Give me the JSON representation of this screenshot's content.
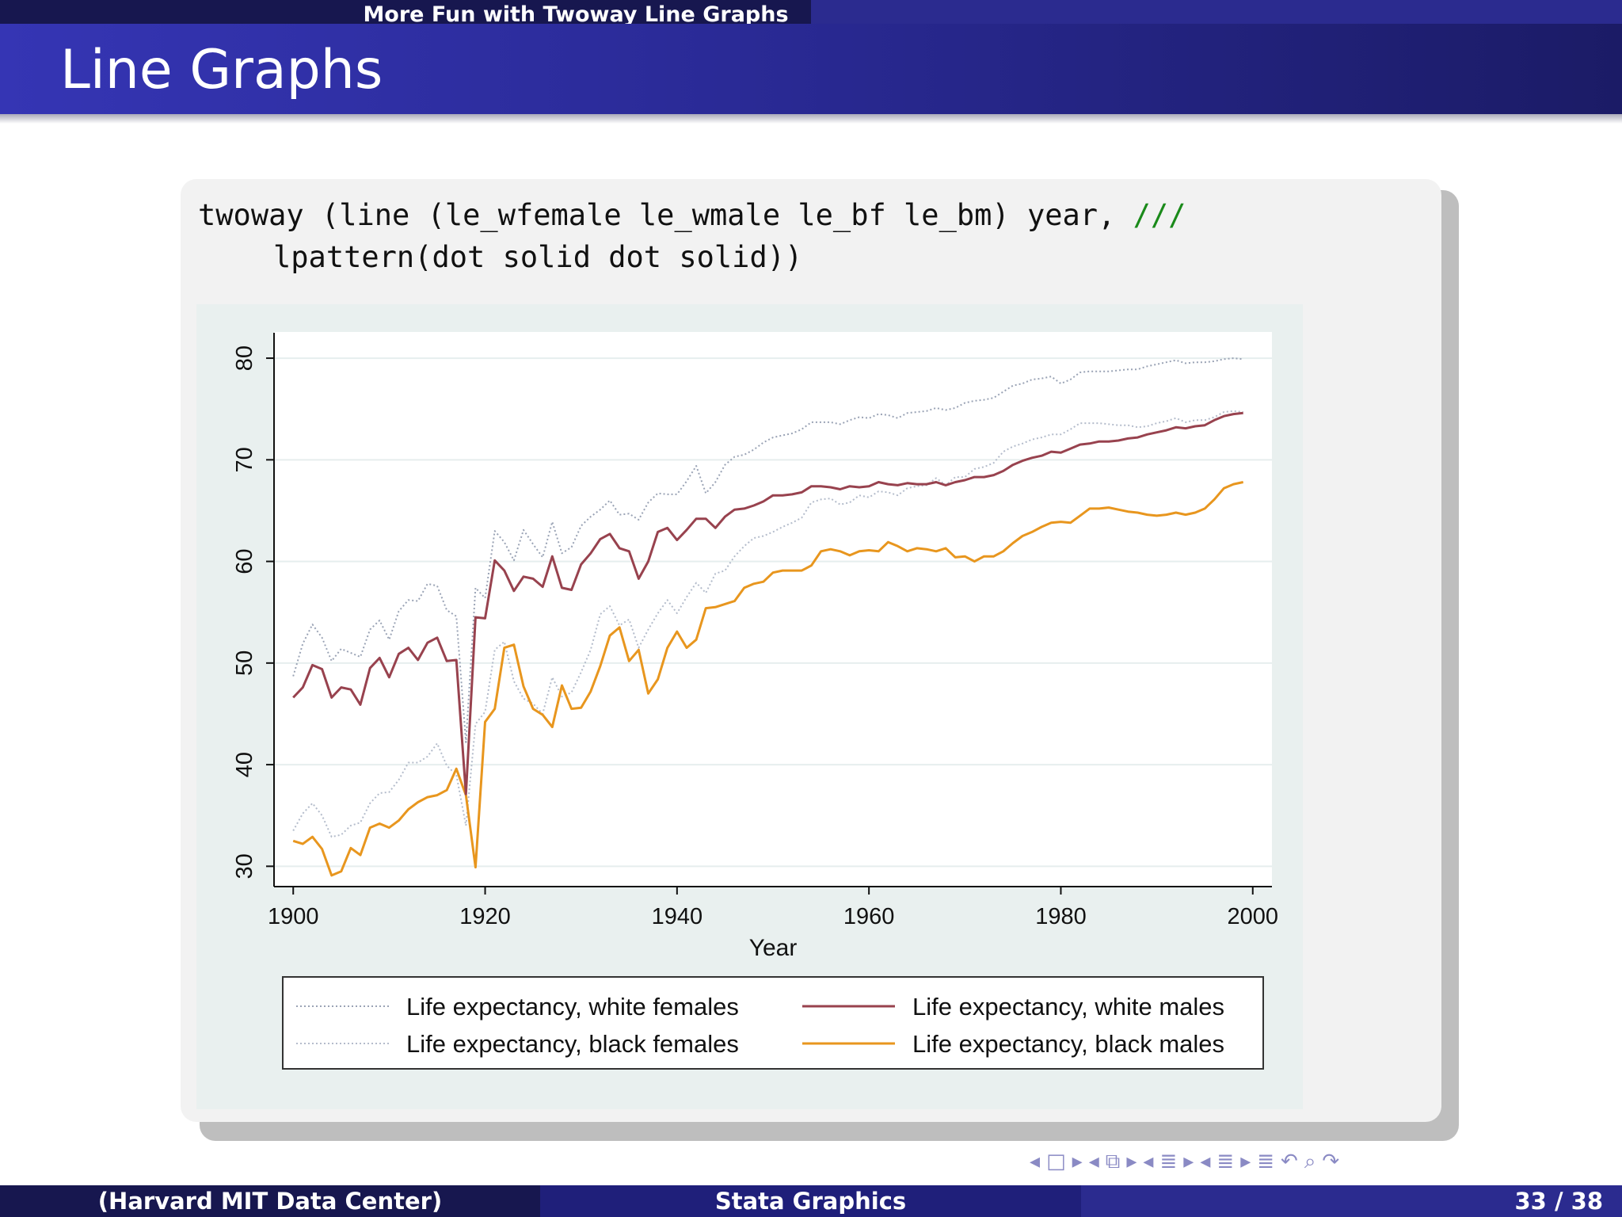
{
  "header": {
    "section_title": "More Fun with Twoway Line Graphs",
    "frame_title": "Line Graphs"
  },
  "code": {
    "line1": "twoway (line (le_wfemale le_wmale le_bf le_bm) year, ",
    "line1_comment": "///",
    "line2": "lpattern(dot solid dot solid))"
  },
  "chart_data": {
    "type": "line",
    "xlabel": "Year",
    "ylabel": "",
    "xlim": [
      1898,
      2002
    ],
    "ylim": [
      28,
      82.5
    ],
    "xticks": [
      1900,
      1920,
      1940,
      1960,
      1980,
      2000
    ],
    "yticks": [
      30,
      40,
      50,
      60,
      70,
      80
    ],
    "grid": true,
    "legend_position": "bottom",
    "x": [
      1900,
      1901,
      1902,
      1903,
      1904,
      1905,
      1906,
      1907,
      1908,
      1909,
      1910,
      1911,
      1912,
      1913,
      1914,
      1915,
      1916,
      1917,
      1918,
      1919,
      1920,
      1921,
      1922,
      1923,
      1924,
      1925,
      1926,
      1927,
      1928,
      1929,
      1930,
      1931,
      1932,
      1933,
      1934,
      1935,
      1936,
      1937,
      1938,
      1939,
      1940,
      1941,
      1942,
      1943,
      1944,
      1945,
      1946,
      1947,
      1948,
      1949,
      1950,
      1951,
      1952,
      1953,
      1954,
      1955,
      1956,
      1957,
      1958,
      1959,
      1960,
      1961,
      1962,
      1963,
      1964,
      1965,
      1966,
      1967,
      1968,
      1969,
      1970,
      1971,
      1972,
      1973,
      1974,
      1975,
      1976,
      1977,
      1978,
      1979,
      1980,
      1981,
      1982,
      1983,
      1984,
      1985,
      1986,
      1987,
      1988,
      1989,
      1990,
      1991,
      1992,
      1993,
      1994,
      1995,
      1996,
      1997,
      1998,
      1999
    ],
    "series": [
      {
        "name": "Life expectancy, white females",
        "color": "#9aa3b5",
        "pattern": "dot",
        "values": [
          48.7,
          51.9,
          53.8,
          52.5,
          50.2,
          51.4,
          51.0,
          50.6,
          53.3,
          54.2,
          52.3,
          55.1,
          56.2,
          56.1,
          57.8,
          57.6,
          55.2,
          54.6,
          42.2,
          57.4,
          56.4,
          63.0,
          61.9,
          60.1,
          63.1,
          61.7,
          60.4,
          63.9,
          60.8,
          61.4,
          63.5,
          64.4,
          65.1,
          66.0,
          64.6,
          64.7,
          64.1,
          65.8,
          66.7,
          66.6,
          66.6,
          67.9,
          69.4,
          66.7,
          67.8,
          69.5,
          70.3,
          70.5,
          71.0,
          71.7,
          72.2,
          72.4,
          72.6,
          73.0,
          73.7,
          73.7,
          73.7,
          73.5,
          73.9,
          74.2,
          74.1,
          74.5,
          74.4,
          74.1,
          74.6,
          74.7,
          74.8,
          75.1,
          74.9,
          75.1,
          75.6,
          75.8,
          75.9,
          76.1,
          76.7,
          77.3,
          77.5,
          77.9,
          78.0,
          78.2,
          77.5,
          77.9,
          78.6,
          78.7,
          78.7,
          78.7,
          78.8,
          78.9,
          78.9,
          79.2,
          79.4,
          79.6,
          79.8,
          79.5,
          79.6,
          79.6,
          79.7,
          79.9,
          80.0,
          79.9
        ]
      },
      {
        "name": "Life expectancy, white males",
        "color": "#98424e",
        "pattern": "solid",
        "values": [
          46.6,
          47.6,
          49.8,
          49.4,
          46.6,
          47.6,
          47.4,
          45.9,
          49.5,
          50.5,
          48.6,
          50.9,
          51.5,
          50.3,
          52.0,
          52.5,
          50.2,
          50.3,
          37.1,
          54.5,
          54.4,
          60.1,
          59.1,
          57.1,
          58.5,
          58.3,
          57.5,
          60.5,
          57.4,
          57.2,
          59.7,
          60.8,
          62.2,
          62.7,
          61.3,
          61.0,
          58.3,
          60.0,
          62.9,
          63.3,
          62.1,
          63.1,
          64.2,
          64.2,
          63.3,
          64.4,
          65.1,
          65.2,
          65.5,
          65.9,
          66.5,
          66.5,
          66.6,
          66.8,
          67.4,
          67.4,
          67.3,
          67.1,
          67.4,
          67.3,
          67.4,
          67.8,
          67.6,
          67.5,
          67.7,
          67.6,
          67.6,
          67.8,
          67.5,
          67.8,
          68.0,
          68.3,
          68.3,
          68.5,
          68.9,
          69.5,
          69.9,
          70.2,
          70.4,
          70.8,
          70.7,
          71.1,
          71.5,
          71.6,
          71.8,
          71.8,
          71.9,
          72.1,
          72.2,
          72.5,
          72.7,
          72.9,
          73.2,
          73.1,
          73.3,
          73.4,
          73.9,
          74.3,
          74.5,
          74.6
        ]
      },
      {
        "name": "Life expectancy, black females",
        "color": "#b4bccb",
        "pattern": "dot",
        "values": [
          33.5,
          35.2,
          36.2,
          35.0,
          32.9,
          33.1,
          34.0,
          34.3,
          36.2,
          37.2,
          37.3,
          38.5,
          40.2,
          40.2,
          40.8,
          42.1,
          39.9,
          39.0,
          34.0,
          44.0,
          45.2,
          51.3,
          52.1,
          48.2,
          46.5,
          46.0,
          45.0,
          48.6,
          46.7,
          47.1,
          49.1,
          51.3,
          54.8,
          55.6,
          53.7,
          54.3,
          51.5,
          53.3,
          54.9,
          56.2,
          54.9,
          56.5,
          57.9,
          56.9,
          58.8,
          59.1,
          60.5,
          61.5,
          62.3,
          62.5,
          62.9,
          63.4,
          63.8,
          64.3,
          65.8,
          66.1,
          66.2,
          65.6,
          65.8,
          66.5,
          66.3,
          66.9,
          66.8,
          66.5,
          67.2,
          67.4,
          67.5,
          68.2,
          67.5,
          68.3,
          68.3,
          69.1,
          69.3,
          69.7,
          70.8,
          71.3,
          71.6,
          72.0,
          72.2,
          72.5,
          72.5,
          73.0,
          73.6,
          73.6,
          73.6,
          73.5,
          73.4,
          73.4,
          73.2,
          73.3,
          73.6,
          73.8,
          74.1,
          73.7,
          73.9,
          73.9,
          74.2,
          74.7,
          74.8,
          74.7
        ]
      },
      {
        "name": "Life expectancy, black males",
        "color": "#e8961e",
        "pattern": "solid",
        "values": [
          32.5,
          32.2,
          32.9,
          31.7,
          29.1,
          29.5,
          31.8,
          31.1,
          33.8,
          34.2,
          33.8,
          34.5,
          35.6,
          36.3,
          36.8,
          37.0,
          37.5,
          39.6,
          37.0,
          29.9,
          44.2,
          45.5,
          51.5,
          51.8,
          47.7,
          45.5,
          44.9,
          43.7,
          47.8,
          45.5,
          45.6,
          47.2,
          49.7,
          52.7,
          53.5,
          50.2,
          51.3,
          47.0,
          48.4,
          51.5,
          53.1,
          51.5,
          52.3,
          55.4,
          55.5,
          55.8,
          56.1,
          57.4,
          57.8,
          58.0,
          58.9,
          59.1,
          59.1,
          59.1,
          59.6,
          61.0,
          61.2,
          61.0,
          60.6,
          61.0,
          61.1,
          61.0,
          61.9,
          61.5,
          61.0,
          61.3,
          61.2,
          61.0,
          61.3,
          60.4,
          60.5,
          60.0,
          60.5,
          60.5,
          61.0,
          61.8,
          62.5,
          62.9,
          63.4,
          63.8,
          63.9,
          63.8,
          64.5,
          65.2,
          65.2,
          65.3,
          65.1,
          64.9,
          64.8,
          64.6,
          64.5,
          64.6,
          64.8,
          64.6,
          64.8,
          65.2,
          66.1,
          67.2,
          67.6,
          67.8
        ]
      }
    ]
  },
  "nav": {
    "icons": [
      "◂",
      "□",
      "▸",
      "◂",
      "⧉",
      "▸",
      "◂",
      "≣",
      "▸",
      "◂",
      "≣",
      "▸",
      "≣",
      "↶",
      "⌕",
      "↷"
    ]
  },
  "footer": {
    "left": "(Harvard MIT Data Center)",
    "middle": "Stata Graphics",
    "right": "33 / 38"
  }
}
